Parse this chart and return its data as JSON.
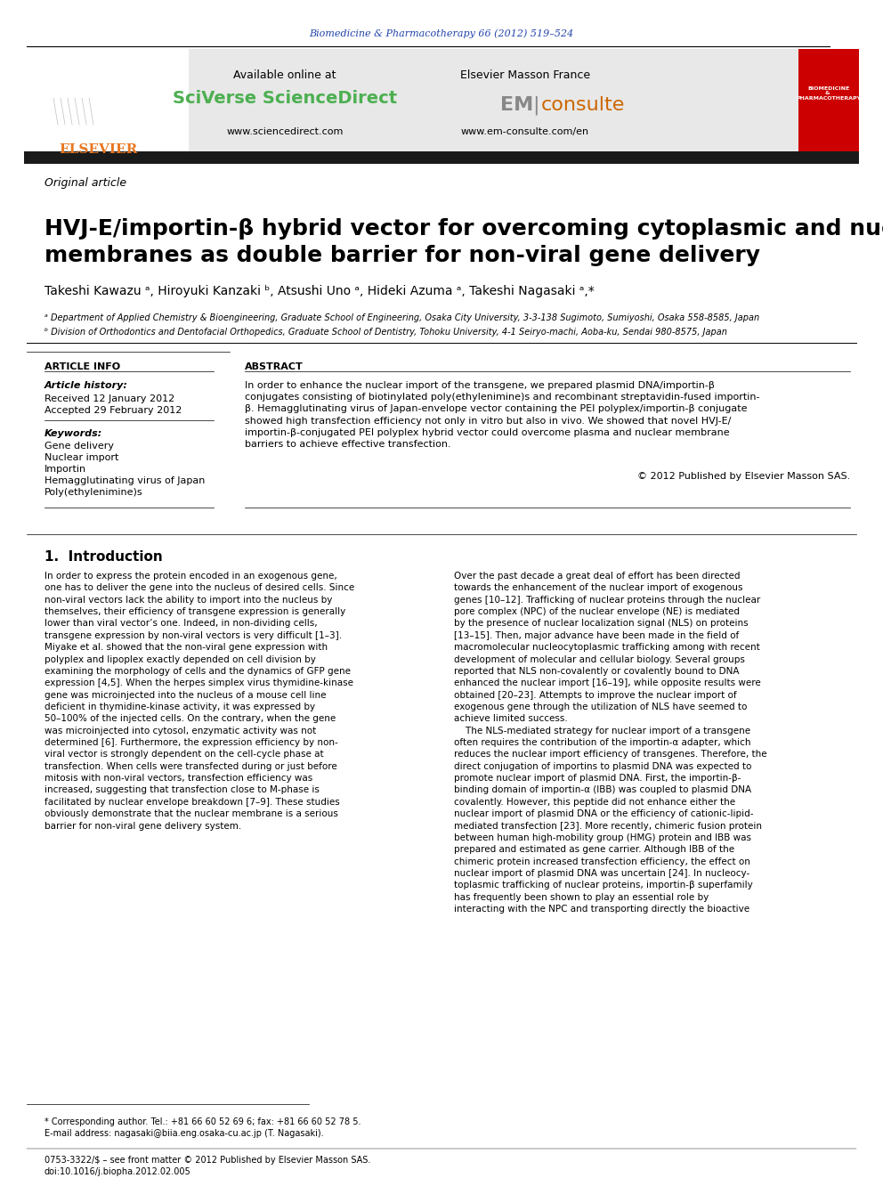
{
  "journal_line": "Biomedicine & Pharmacotherapy 66 (2012) 519–524",
  "journal_line_color": "#2244aa",
  "available_online": "Available online at",
  "sciverse": "SciVerse ScienceDirect",
  "sciverse_color": "#4caf50",
  "www_sciencedirect": "www.sciencedirect.com",
  "elsevier_masson": "Elsevier Masson France",
  "em_consulte_em": "EM",
  "em_consulte_consulte": "consulte",
  "em_consulte_color_em": "#888888",
  "em_consulte_color_consulte": "#cc6600",
  "www_em_consulte": "www.em-consulte.com/en",
  "article_type": "Original article",
  "title": "HVJ-E/importin-β hybrid vector for overcoming cytoplasmic and nuclear\nmembranes as double barrier for non-viral gene delivery",
  "authors": "Takeshi Kawazu ᵃ, Hiroyuki Kanzaki ᵇ, Atsushi Uno ᵃ, Hideki Azuma ᵃ, Takeshi Nagasaki ᵃ,*",
  "affil_a": "ᵃ Department of Applied Chemistry & Bioengineering, Graduate School of Engineering, Osaka City University, 3-3-138 Sugimoto, Sumiyoshi, Osaka 558-8585, Japan",
  "affil_b": "ᵇ Division of Orthodontics and Dentofacial Orthopedics, Graduate School of Dentistry, Tohoku University, 4-1 Seiryo-machi, Aoba-ku, Sendai 980-8575, Japan",
  "article_info_title": "ARTICLE INFO",
  "article_history_label": "Article history:",
  "received": "Received 12 January 2012",
  "accepted": "Accepted 29 February 2012",
  "keywords_label": "Keywords:",
  "keywords": [
    "Gene delivery",
    "Nuclear import",
    "Importin",
    "Hemagglutinating virus of Japan",
    "Poly(ethylenimine)s"
  ],
  "abstract_title": "ABSTRACT",
  "abstract_text": "In order to enhance the nuclear import of the transgene, we prepared plasmid DNA/importin-β\nconjugates consisting of biotinylated poly(ethylenimine)s and recombinant streptavidin-fused importin-\nβ. Hemagglutinating virus of Japan-envelope vector containing the PEI polyplex/importin-β conjugate\nshowed high transfection efficiency not only in vitro but also in vivo. We showed that novel HVJ-E/\nimportin-β-conjugated PEI polyplex hybrid vector could overcome plasma and nuclear membrane\nbarriers to achieve effective transfection.",
  "copyright_text": "© 2012 Published by Elsevier Masson SAS.",
  "intro_title": "1.  Introduction",
  "intro_left": "In order to express the protein encoded in an exogenous gene,\none has to deliver the gene into the nucleus of desired cells. Since\nnon-viral vectors lack the ability to import into the nucleus by\nthemselves, their efficiency of transgene expression is generally\nlower than viral vector’s one. Indeed, in non-dividing cells,\ntransgene expression by non-viral vectors is very difficult [1–3].\nMiyake et al. showed that the non-viral gene expression with\npolyplex and lipoplex exactly depended on cell division by\nexamining the morphology of cells and the dynamics of GFP gene\nexpression [4,5]. When the herpes simplex virus thymidine-kinase\ngene was microinjected into the nucleus of a mouse cell line\ndeficient in thymidine-kinase activity, it was expressed by\n50–100% of the injected cells. On the contrary, when the gene\nwas microinjected into cytosol, enzymatic activity was not\ndetermined [6]. Furthermore, the expression efficiency by non-\nviral vector is strongly dependent on the cell-cycle phase at\ntransfection. When cells were transfected during or just before\nmitosis with non-viral vectors, transfection efficiency was\nincreased, suggesting that transfection close to M-phase is\nfacilitated by nuclear envelope breakdown [7–9]. These studies\nobviously demonstrate that the nuclear membrane is a serious\nbarrier for non-viral gene delivery system.",
  "intro_right": "Over the past decade a great deal of effort has been directed\ntowards the enhancement of the nuclear import of exogenous\ngenes [10–12]. Trafficking of nuclear proteins through the nuclear\npore complex (NPC) of the nuclear envelope (NE) is mediated\nby the presence of nuclear localization signal (NLS) on proteins\n[13–15]. Then, major advance have been made in the field of\nmacromolecular nucleocytoplasmic trafficking among with recent\ndevelopment of molecular and cellular biology. Several groups\nreported that NLS non-covalently or covalently bound to DNA\nenhanced the nuclear import [16–19], while opposite results were\nobtained [20–23]. Attempts to improve the nuclear import of\nexogenous gene through the utilization of NLS have seemed to\nachieve limited success.\n    The NLS-mediated strategy for nuclear import of a transgene\noften requires the contribution of the importin-α adapter, which\nreduces the nuclear import efficiency of transgenes. Therefore, the\ndirect conjugation of importins to plasmid DNA was expected to\npromote nuclear import of plasmid DNA. First, the importin-β-\nbinding domain of importin-α (IBB) was coupled to plasmid DNA\ncovalently. However, this peptide did not enhance either the\nnuclear import of plasmid DNA or the efficiency of cationic-lipid-\nmediated transfection [23]. More recently, chimeric fusion protein\nbetween human high-mobility group (HMG) protein and IBB was\nprepared and estimated as gene carrier. Although IBB of the\nchimeric protein increased transfection efficiency, the effect on\nnuclear import of plasmid DNA was uncertain [24]. In nucleocy-\ntoplasmic trafficking of nuclear proteins, importin-β superfamily\nhas frequently been shown to play an essential role by\ninteracting with the NPC and transporting directly the bioactive",
  "footnote_star": "* Corresponding author. Tel.: +81 66 60 52 69 6; fax: +81 66 60 52 78 5.",
  "footnote_email": "E-mail address: nagasaki@biia.eng.osaka-cu.ac.jp (T. Nagasaki).",
  "footer_issn": "0753-3322/$ – see front matter © 2012 Published by Elsevier Masson SAS.",
  "footer_doi": "doi:10.1016/j.biopha.2012.02.005",
  "header_bg_color": "#e8e8e8",
  "dark_bar_color": "#1a1a1a",
  "elsevier_orange": "#e87722",
  "page_bg": "#ffffff"
}
